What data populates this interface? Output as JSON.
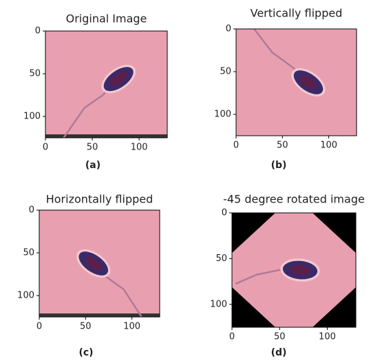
{
  "chart_data": [
    {
      "type": "image",
      "title": "Original Image",
      "caption": "(a)",
      "xlim": [
        0,
        130
      ],
      "ylim": [
        125,
        0
      ],
      "xticks": [
        0,
        50,
        100
      ],
      "yticks": [
        0,
        50,
        100
      ]
    },
    {
      "type": "image",
      "title": "Vertically flipped",
      "caption": "(b)",
      "xlim": [
        0,
        130
      ],
      "ylim": [
        125,
        0
      ],
      "xticks": [
        0,
        50,
        100
      ],
      "yticks": [
        0,
        50,
        100
      ]
    },
    {
      "type": "image",
      "title": "Horizontally flipped",
      "caption": "(c)",
      "xlim": [
        0,
        130
      ],
      "ylim": [
        125,
        0
      ],
      "xticks": [
        0,
        50,
        100
      ],
      "yticks": [
        0,
        50,
        100
      ]
    },
    {
      "type": "image",
      "title": "-45 degree rotated image",
      "caption": "(d)",
      "xlim": [
        0,
        130
      ],
      "ylim": [
        125,
        0
      ],
      "xticks": [
        0,
        50,
        100
      ],
      "yticks": [
        0,
        50,
        100
      ]
    }
  ]
}
